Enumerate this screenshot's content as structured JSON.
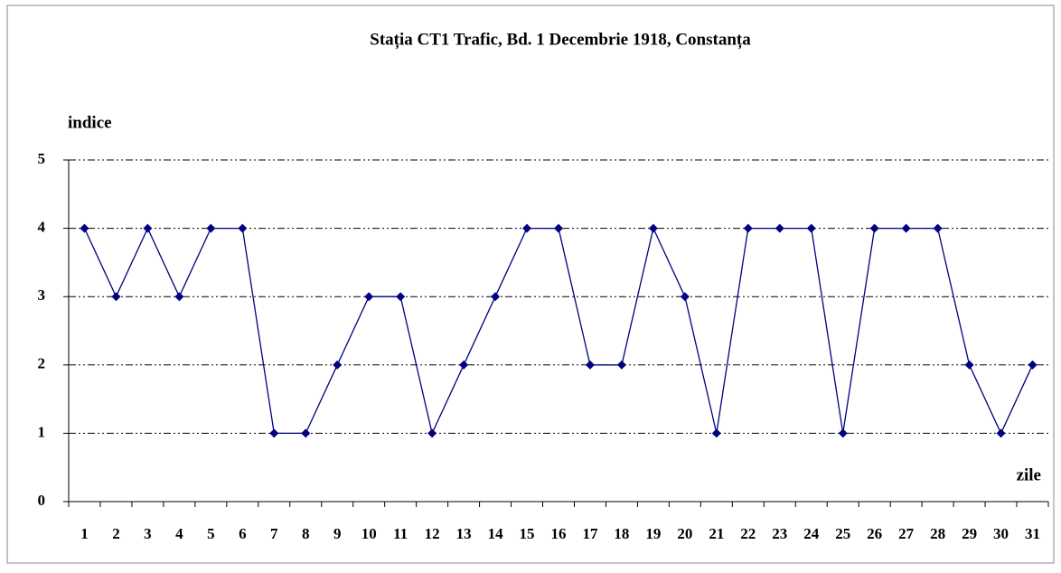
{
  "chart_data": {
    "type": "line",
    "title": "Stația CT1 Trafic, Bd. 1 Decembrie 1918, Constanța",
    "y_label": "indice",
    "x_label": "zile",
    "categories": [
      "1",
      "2",
      "3",
      "4",
      "5",
      "6",
      "7",
      "8",
      "9",
      "10",
      "11",
      "12",
      "13",
      "14",
      "15",
      "16",
      "17",
      "18",
      "19",
      "20",
      "21",
      "22",
      "23",
      "24",
      "25",
      "26",
      "27",
      "28",
      "29",
      "30",
      "31"
    ],
    "series": [
      {
        "color": "#000080",
        "values": [
          4,
          3,
          4,
          3,
          4,
          4,
          1,
          1,
          2,
          3,
          3,
          1,
          2,
          3,
          4,
          4,
          2,
          2,
          4,
          3,
          1,
          4,
          4,
          4,
          1,
          4,
          4,
          4,
          2,
          1,
          2
        ]
      }
    ],
    "ylim": [
      0,
      5
    ],
    "yticks": [
      0,
      1,
      2,
      3,
      4,
      5
    ],
    "grid": true
  }
}
